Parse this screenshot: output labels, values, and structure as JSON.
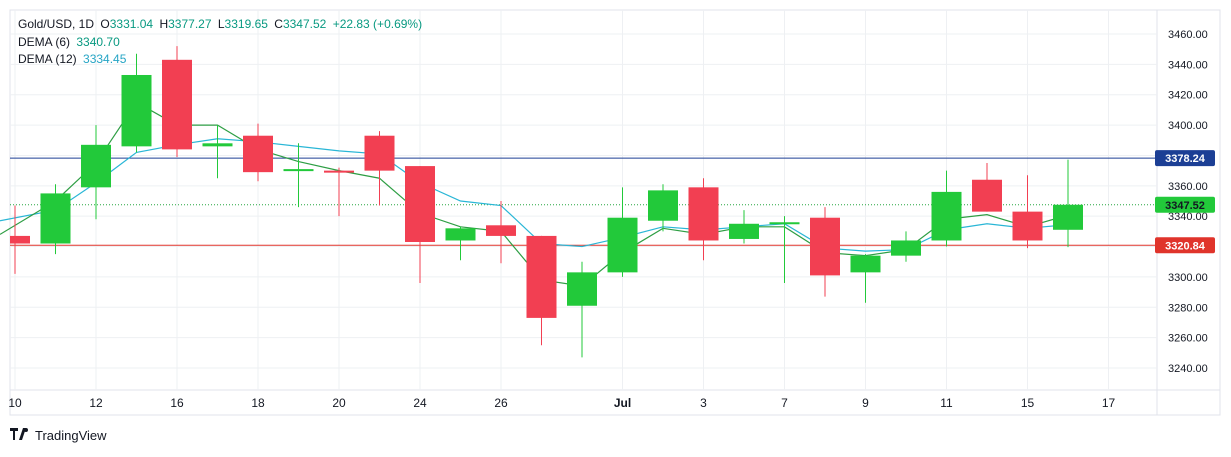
{
  "legend": {
    "symbol": "Gold/USD, 1D",
    "open_label": "O",
    "open": "3331.04",
    "high_label": "H",
    "high": "3377.27",
    "low_label": "L",
    "low": "3319.65",
    "close_label": "C",
    "close": "3347.52",
    "change": "+22.83 (+0.69%)",
    "dema6_label": "DEMA (6)",
    "dema6_value": "3340.70",
    "dema12_label": "DEMA (12)",
    "dema12_value": "3334.45"
  },
  "brand": {
    "name": "TradingView"
  },
  "colors": {
    "up": "#22c93a",
    "down": "#f23f52",
    "dema6": "#2e9e44",
    "dema12": "#29b6d6",
    "hline_blue": "#1c3f95",
    "hline_red": "#e0342b",
    "dotted_green": "#26a641",
    "grid": "#eef0f3",
    "axis_text": "#131722"
  },
  "chart_data": {
    "type": "candlestick",
    "y_range": [
      3230,
      3470
    ],
    "y_ticks": [
      3240,
      3260,
      3280,
      3300,
      3320,
      3340,
      3360,
      3380,
      3400,
      3420,
      3440,
      3460
    ],
    "x_ticks": [
      {
        "label": "10",
        "index": 0
      },
      {
        "label": "12",
        "index": 2
      },
      {
        "label": "16",
        "index": 4
      },
      {
        "label": "18",
        "index": 6
      },
      {
        "label": "20",
        "index": 8
      },
      {
        "label": "24",
        "index": 10
      },
      {
        "label": "26",
        "index": 12
      },
      {
        "label": "Jul",
        "index": 15,
        "bold": true
      },
      {
        "label": "3",
        "index": 17
      },
      {
        "label": "7",
        "index": 19
      },
      {
        "label": "9",
        "index": 21
      },
      {
        "label": "11",
        "index": 23
      },
      {
        "label": "15",
        "index": 25
      },
      {
        "label": "17",
        "index": 27
      }
    ],
    "candles": [
      {
        "o": 3327,
        "h": 3347,
        "l": 3302,
        "c": 3322
      },
      {
        "o": 3322,
        "h": 3361,
        "l": 3315,
        "c": 3355
      },
      {
        "o": 3359,
        "h": 3400,
        "l": 3338,
        "c": 3387
      },
      {
        "o": 3386,
        "h": 3447,
        "l": 3382,
        "c": 3433
      },
      {
        "o": 3443,
        "h": 3452,
        "l": 3379,
        "c": 3384
      },
      {
        "o": 3386,
        "h": 3400,
        "l": 3365,
        "c": 3388
      },
      {
        "o": 3393,
        "h": 3401,
        "l": 3363,
        "c": 3369
      },
      {
        "o": 3371,
        "h": 3388,
        "l": 3346,
        "c": 3371
      },
      {
        "o": 3370,
        "h": 3372,
        "l": 3340,
        "c": 3369
      },
      {
        "o": 3393,
        "h": 3396,
        "l": 3347,
        "c": 3370
      },
      {
        "o": 3373,
        "h": 3373,
        "l": 3296,
        "c": 3323
      },
      {
        "o": 3324,
        "h": 3333,
        "l": 3311,
        "c": 3332
      },
      {
        "o": 3334,
        "h": 3350,
        "l": 3309,
        "c": 3327
      },
      {
        "o": 3327,
        "h": 3327,
        "l": 3255,
        "c": 3273
      },
      {
        "o": 3281,
        "h": 3310,
        "l": 3247,
        "c": 3303
      },
      {
        "o": 3303,
        "h": 3359,
        "l": 3300,
        "c": 3339
      },
      {
        "o": 3337,
        "h": 3361,
        "l": 3330,
        "c": 3357
      },
      {
        "o": 3359,
        "h": 3365,
        "l": 3311,
        "c": 3324
      },
      {
        "o": 3325,
        "h": 3344,
        "l": 3322,
        "c": 3335
      },
      {
        "o": 3335,
        "h": 3340,
        "l": 3296,
        "c": 3336
      },
      {
        "o": 3339,
        "h": 3346,
        "l": 3287,
        "c": 3301
      },
      {
        "o": 3303,
        "h": 3315,
        "l": 3283,
        "c": 3314
      },
      {
        "o": 3314,
        "h": 3330,
        "l": 3310,
        "c": 3324
      },
      {
        "o": 3324,
        "h": 3370,
        "l": 3320,
        "c": 3356
      },
      {
        "o": 3364,
        "h": 3375,
        "l": 3343,
        "c": 3343
      },
      {
        "o": 3343,
        "h": 3367,
        "l": 3319,
        "c": 3324
      },
      {
        "o": 3331.04,
        "h": 3377.27,
        "l": 3319.65,
        "c": 3347.52
      }
    ],
    "dema6": [
      3328,
      3350,
      3375,
      3415,
      3400,
      3400,
      3384,
      3376,
      3370,
      3365,
      3342,
      3333,
      3330,
      3298,
      3294,
      3316,
      3332,
      3328,
      3333,
      3333,
      3316,
      3314,
      3318,
      3338,
      3341,
      3333,
      3340.7
    ],
    "dema12": [
      3337,
      3344,
      3362,
      3382,
      3387,
      3391,
      3389,
      3386,
      3383,
      3381,
      3362,
      3350,
      3347,
      3322,
      3320,
      3326,
      3333,
      3331,
      3333,
      3335,
      3319,
      3317,
      3318,
      3331,
      3335,
      3332,
      3334.45
    ],
    "dema6_start_x": -3,
    "dema12_start_x": -3,
    "hlines": [
      {
        "value": 3378.24,
        "label": "3378.24",
        "color": "#1c3f95",
        "style": "solid"
      },
      {
        "value": 3320.84,
        "label": "3320.84",
        "color": "#e0342b",
        "style": "solid"
      },
      {
        "value": 3347.52,
        "label": "3347.52",
        "color": "#26a641",
        "style": "dotted",
        "label_bg": "#22c93a"
      }
    ]
  }
}
